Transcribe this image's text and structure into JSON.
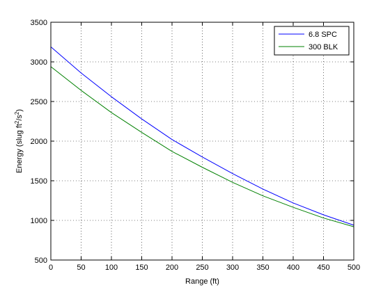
{
  "chart_data": {
    "type": "line",
    "title": "",
    "xlabel": "Range (ft)",
    "ylabel_main": "Energy (slug ft",
    "ylabel_sup1": "2",
    "ylabel_mid": "/s",
    "ylabel_sup2": "2",
    "ylabel_end": ")",
    "xlim": [
      0,
      500
    ],
    "ylim": [
      500,
      3500
    ],
    "xticks": [
      0,
      50,
      100,
      150,
      200,
      250,
      300,
      350,
      400,
      450,
      500
    ],
    "yticks": [
      500,
      1000,
      1500,
      2000,
      2500,
      3000,
      3500
    ],
    "grid": true,
    "legend_position": "top-right",
    "x": [
      0,
      50,
      100,
      150,
      200,
      250,
      300,
      350,
      400,
      450,
      500
    ],
    "series": [
      {
        "name": "6.8 SPC",
        "color": "#0000ff",
        "values": [
          3190,
          2860,
          2560,
          2280,
          2020,
          1800,
          1590,
          1395,
          1220,
          1070,
          940
        ]
      },
      {
        "name": "300 BLK",
        "color": "#008000",
        "values": [
          2940,
          2640,
          2360,
          2110,
          1870,
          1670,
          1480,
          1310,
          1165,
          1030,
          920
        ]
      }
    ]
  }
}
